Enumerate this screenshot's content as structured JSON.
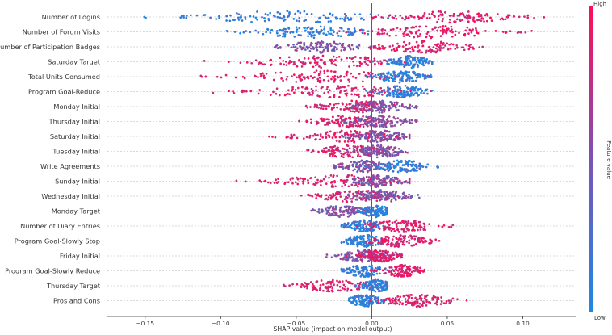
{
  "chart_data": {
    "type": "scatter",
    "subtype": "beeswarm",
    "title": "",
    "xlabel": "SHAP value (impact on model output)",
    "ylabel": "",
    "xlim": [
      -0.175,
      0.135
    ],
    "x_ticks": [
      -0.15,
      -0.1,
      -0.05,
      0.0,
      0.05,
      0.1
    ],
    "x_tick_labels": [
      "−0.15",
      "−0.10",
      "−0.05",
      "0.00",
      "0.05",
      "0.10"
    ],
    "grid": "horizontal dotted lines per feature",
    "colorbar": {
      "label": "Feature value",
      "high": "High",
      "low": "Low",
      "low_color": "#1e88e5",
      "high_color": "#ff0d57"
    },
    "features": [
      {
        "name": "Number of Logins",
        "min": -0.16,
        "max": 0.12,
        "neg_center": -0.055,
        "pos_center": 0.055,
        "neg_color": "low",
        "pos_color": "high"
      },
      {
        "name": "Number of Forum Visits",
        "min": -0.1,
        "max": 0.11,
        "neg_center": -0.04,
        "pos_center": 0.04,
        "neg_color": "low",
        "pos_color": "high"
      },
      {
        "name": "Number of Participation Badges",
        "min": -0.07,
        "max": 0.09,
        "neg_center": -0.035,
        "pos_center": 0.035,
        "neg_color": "mid",
        "pos_color": "high"
      },
      {
        "name": "Saturday Target",
        "min": -0.115,
        "max": 0.04,
        "neg_center": -0.03,
        "pos_center": 0.025,
        "neg_color": "high",
        "pos_color": "low"
      },
      {
        "name": "Total Units Consumed",
        "min": -0.125,
        "max": 0.04,
        "neg_center": -0.03,
        "pos_center": 0.02,
        "neg_color": "high",
        "pos_color": "low"
      },
      {
        "name": "Program Goal-Reduce",
        "min": -0.125,
        "max": 0.04,
        "neg_center": -0.025,
        "pos_center": 0.02,
        "neg_color": "high",
        "pos_color": "low"
      },
      {
        "name": "Monday Initial",
        "min": -0.045,
        "max": 0.03,
        "neg_center": -0.01,
        "pos_center": 0.005,
        "neg_color": "high",
        "pos_color": "mid"
      },
      {
        "name": "Thursday Initial",
        "min": -0.05,
        "max": 0.03,
        "neg_center": -0.015,
        "pos_center": 0.005,
        "neg_color": "high",
        "pos_color": "mid"
      },
      {
        "name": "Saturday Initial",
        "min": -0.07,
        "max": 0.025,
        "neg_center": -0.015,
        "pos_center": 0.005,
        "neg_color": "high",
        "pos_color": "mid"
      },
      {
        "name": "Tuesday Initial",
        "min": -0.05,
        "max": 0.025,
        "neg_center": -0.015,
        "pos_center": 0.005,
        "neg_color": "high",
        "pos_color": "mid"
      },
      {
        "name": "Write Agreements",
        "min": -0.025,
        "max": 0.045,
        "neg_center": -0.005,
        "pos_center": 0.02,
        "neg_color": "mid",
        "pos_color": "low"
      },
      {
        "name": "Sunday Initial",
        "min": -0.095,
        "max": 0.025,
        "neg_center": -0.02,
        "pos_center": 0.005,
        "neg_color": "high",
        "pos_color": "mid"
      },
      {
        "name": "Wednesday Initial",
        "min": -0.05,
        "max": 0.035,
        "neg_center": -0.01,
        "pos_center": 0.005,
        "neg_color": "high",
        "pos_color": "mid"
      },
      {
        "name": "Monday Target",
        "min": -0.04,
        "max": 0.01,
        "neg_center": -0.02,
        "pos_center": 0.003,
        "neg_color": "mid",
        "pos_color": "low"
      },
      {
        "name": "Number of Diary Entries",
        "min": -0.02,
        "max": 0.055,
        "neg_center": -0.005,
        "pos_center": 0.02,
        "neg_color": "low",
        "pos_color": "high"
      },
      {
        "name": "Program Goal-Slowly Stop",
        "min": -0.02,
        "max": 0.045,
        "neg_center": -0.005,
        "pos_center": 0.02,
        "neg_color": "low",
        "pos_color": "high"
      },
      {
        "name": "Friday Initial",
        "min": -0.03,
        "max": 0.02,
        "neg_center": -0.005,
        "pos_center": 0.005,
        "neg_color": "mid",
        "pos_color": "high"
      },
      {
        "name": "Program Goal-Slowly Reduce",
        "min": -0.02,
        "max": 0.035,
        "neg_center": -0.005,
        "pos_center": 0.02,
        "neg_color": "low",
        "pos_color": "high"
      },
      {
        "name": "Thursday Target",
        "min": -0.06,
        "max": 0.01,
        "neg_center": -0.025,
        "pos_center": 0.003,
        "neg_color": "high",
        "pos_color": "low"
      },
      {
        "name": "Pros and Cons",
        "min": -0.015,
        "max": 0.065,
        "neg_center": -0.005,
        "pos_center": 0.03,
        "neg_color": "low",
        "pos_color": "high"
      }
    ]
  }
}
